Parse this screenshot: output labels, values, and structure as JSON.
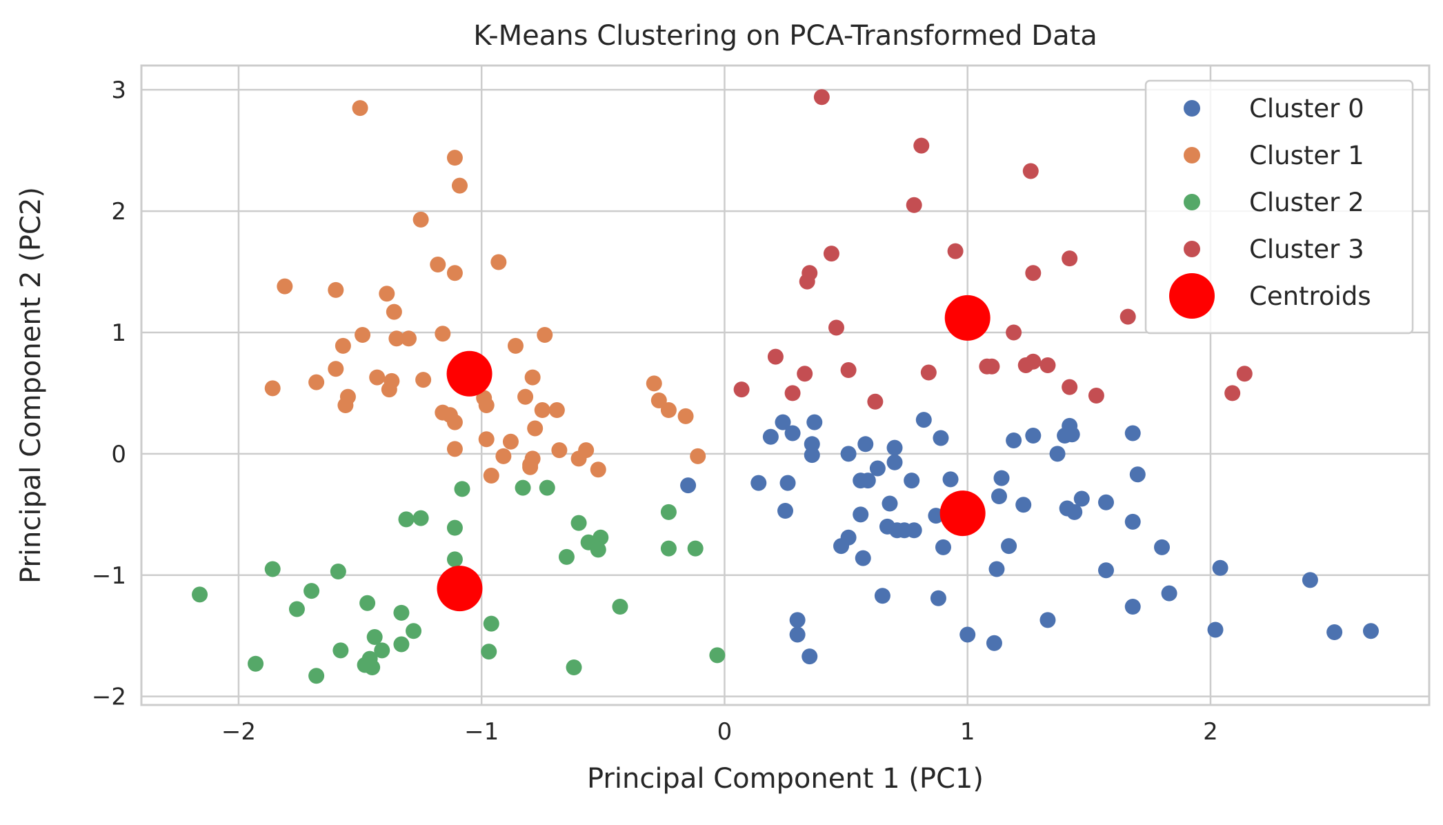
{
  "chart_data": {
    "type": "scatter",
    "title": "K-Means Clustering on PCA-Transformed Data",
    "xlabel": "Principal Component 1 (PC1)",
    "ylabel": "Principal Component 2 (PC2)",
    "xlim": [
      -2.4,
      2.9
    ],
    "ylim": [
      -2.07,
      3.2
    ],
    "xticks": [
      -2,
      -1,
      0,
      1,
      2
    ],
    "yticks": [
      -2,
      -1,
      0,
      1,
      2,
      3
    ],
    "xtick_labels": [
      "−2",
      "−1",
      "0",
      "1",
      "2"
    ],
    "ytick_labels": [
      "−2",
      "−1",
      "0",
      "1",
      "2",
      "3"
    ],
    "grid": true,
    "legend_position": "top-right",
    "series": [
      {
        "name": "Cluster 0",
        "color": "#4c72b0",
        "marker": "circle",
        "points": [
          [
            -0.15,
            -0.26
          ],
          [
            0.14,
            -0.24
          ],
          [
            0.19,
            0.14
          ],
          [
            0.24,
            0.26
          ],
          [
            0.28,
            0.17
          ],
          [
            0.26,
            -0.24
          ],
          [
            0.25,
            -0.47
          ],
          [
            0.37,
            0.26
          ],
          [
            0.36,
            0.08
          ],
          [
            0.36,
            -0.01
          ],
          [
            0.51,
            0.0
          ],
          [
            0.58,
            0.08
          ],
          [
            0.56,
            -0.22
          ],
          [
            0.59,
            -0.22
          ],
          [
            0.63,
            -0.12
          ],
          [
            0.56,
            -0.5
          ],
          [
            0.48,
            -0.76
          ],
          [
            0.51,
            -0.69
          ],
          [
            0.57,
            -0.86
          ],
          [
            0.68,
            -0.41
          ],
          [
            0.67,
            -0.6
          ],
          [
            0.71,
            -0.63
          ],
          [
            0.74,
            -0.63
          ],
          [
            0.78,
            -0.63
          ],
          [
            0.7,
            0.05
          ],
          [
            0.7,
            -0.07
          ],
          [
            0.77,
            -0.22
          ],
          [
            0.82,
            0.28
          ],
          [
            0.89,
            0.13
          ],
          [
            0.93,
            -0.21
          ],
          [
            0.87,
            -0.51
          ],
          [
            0.93,
            -0.48
          ],
          [
            0.9,
            -0.77
          ],
          [
            0.65,
            -1.17
          ],
          [
            0.88,
            -1.19
          ],
          [
            0.3,
            -1.37
          ],
          [
            0.3,
            -1.49
          ],
          [
            0.35,
            -1.67
          ],
          [
            1.0,
            -1.49
          ],
          [
            1.11,
            -1.56
          ],
          [
            1.12,
            -0.95
          ],
          [
            1.17,
            -0.76
          ],
          [
            1.14,
            -0.2
          ],
          [
            1.13,
            -0.35
          ],
          [
            1.19,
            0.11
          ],
          [
            1.23,
            -0.42
          ],
          [
            1.27,
            0.15
          ],
          [
            1.37,
            0.0
          ],
          [
            1.4,
            0.15
          ],
          [
            1.42,
            0.23
          ],
          [
            1.43,
            0.16
          ],
          [
            1.41,
            -0.45
          ],
          [
            1.44,
            -0.48
          ],
          [
            1.47,
            -0.37
          ],
          [
            1.57,
            -0.4
          ],
          [
            1.33,
            -1.37
          ],
          [
            1.57,
            -0.96
          ],
          [
            1.68,
            0.17
          ],
          [
            1.7,
            -0.17
          ],
          [
            1.68,
            -0.56
          ],
          [
            1.68,
            -1.26
          ],
          [
            1.8,
            -0.77
          ],
          [
            1.83,
            -1.15
          ],
          [
            2.02,
            -1.45
          ],
          [
            2.04,
            -0.94
          ],
          [
            2.41,
            -1.04
          ],
          [
            2.51,
            -1.47
          ],
          [
            2.66,
            -1.46
          ]
        ]
      },
      {
        "name": "Cluster 1",
        "color": "#dd8452",
        "marker": "circle",
        "points": [
          [
            -1.5,
            2.85
          ],
          [
            -1.11,
            2.44
          ],
          [
            -1.09,
            2.21
          ],
          [
            -1.25,
            1.93
          ],
          [
            -1.18,
            1.56
          ],
          [
            -1.11,
            1.49
          ],
          [
            -0.93,
            1.58
          ],
          [
            -1.81,
            1.38
          ],
          [
            -1.6,
            1.35
          ],
          [
            -1.39,
            1.32
          ],
          [
            -1.36,
            1.17
          ],
          [
            -1.49,
            0.98
          ],
          [
            -1.35,
            0.95
          ],
          [
            -1.3,
            0.95
          ],
          [
            -1.16,
            0.99
          ],
          [
            -1.57,
            0.89
          ],
          [
            -0.86,
            0.89
          ],
          [
            -0.74,
            0.98
          ],
          [
            -1.86,
            0.54
          ],
          [
            -1.68,
            0.59
          ],
          [
            -1.6,
            0.7
          ],
          [
            -1.43,
            0.63
          ],
          [
            -1.37,
            0.6
          ],
          [
            -1.38,
            0.53
          ],
          [
            -1.55,
            0.47
          ],
          [
            -1.56,
            0.4
          ],
          [
            -1.24,
            0.61
          ],
          [
            -0.79,
            0.63
          ],
          [
            -0.82,
            0.47
          ],
          [
            -1.16,
            0.34
          ],
          [
            -1.13,
            0.32
          ],
          [
            -1.11,
            0.26
          ],
          [
            -0.98,
            0.4
          ],
          [
            -0.99,
            0.46
          ],
          [
            -0.75,
            0.36
          ],
          [
            -0.69,
            0.36
          ],
          [
            -0.78,
            0.21
          ],
          [
            -0.98,
            0.12
          ],
          [
            -0.88,
            0.1
          ],
          [
            -1.11,
            0.04
          ],
          [
            -0.91,
            -0.02
          ],
          [
            -0.79,
            -0.04
          ],
          [
            -0.68,
            0.03
          ],
          [
            -0.8,
            -0.09
          ],
          [
            -0.8,
            -0.11
          ],
          [
            -0.96,
            -0.18
          ],
          [
            -0.57,
            0.03
          ],
          [
            -0.6,
            -0.04
          ],
          [
            -0.52,
            -0.13
          ],
          [
            -0.29,
            0.58
          ],
          [
            -0.27,
            0.44
          ],
          [
            -0.23,
            0.36
          ],
          [
            -0.16,
            0.31
          ],
          [
            -0.11,
            -0.02
          ]
        ]
      },
      {
        "name": "Cluster 2",
        "color": "#55a868",
        "marker": "circle",
        "points": [
          [
            -2.16,
            -1.16
          ],
          [
            -1.86,
            -0.95
          ],
          [
            -1.93,
            -1.73
          ],
          [
            -1.76,
            -1.28
          ],
          [
            -1.7,
            -1.13
          ],
          [
            -1.68,
            -1.83
          ],
          [
            -1.59,
            -0.97
          ],
          [
            -1.58,
            -1.62
          ],
          [
            -1.47,
            -1.23
          ],
          [
            -1.46,
            -1.69
          ],
          [
            -1.45,
            -1.76
          ],
          [
            -1.44,
            -1.51
          ],
          [
            -1.41,
            -1.62
          ],
          [
            -1.48,
            -1.74
          ],
          [
            -1.31,
            -0.54
          ],
          [
            -1.25,
            -0.53
          ],
          [
            -1.33,
            -1.31
          ],
          [
            -1.33,
            -1.57
          ],
          [
            -1.28,
            -1.46
          ],
          [
            -1.11,
            -0.61
          ],
          [
            -1.11,
            -0.87
          ],
          [
            -1.08,
            -0.29
          ],
          [
            -1.07,
            -1.16
          ],
          [
            -0.97,
            -1.63
          ],
          [
            -0.96,
            -1.4
          ],
          [
            -0.83,
            -0.28
          ],
          [
            -0.73,
            -0.28
          ],
          [
            -0.6,
            -0.57
          ],
          [
            -0.56,
            -0.73
          ],
          [
            -0.51,
            -0.69
          ],
          [
            -0.52,
            -0.79
          ],
          [
            -0.65,
            -0.85
          ],
          [
            -0.43,
            -1.26
          ],
          [
            -0.62,
            -1.76
          ],
          [
            -0.23,
            -0.48
          ],
          [
            -0.23,
            -0.78
          ],
          [
            -0.12,
            -0.78
          ],
          [
            -0.03,
            -1.66
          ]
        ]
      },
      {
        "name": "Cluster 3",
        "color": "#c44e52",
        "marker": "circle",
        "points": [
          [
            0.4,
            2.94
          ],
          [
            0.81,
            2.54
          ],
          [
            1.26,
            2.33
          ],
          [
            0.78,
            2.05
          ],
          [
            0.95,
            1.67
          ],
          [
            1.42,
            1.61
          ],
          [
            0.44,
            1.65
          ],
          [
            0.35,
            1.49
          ],
          [
            0.34,
            1.42
          ],
          [
            1.27,
            1.49
          ],
          [
            0.46,
            1.04
          ],
          [
            0.95,
            1.07
          ],
          [
            1.66,
            1.13
          ],
          [
            1.19,
            1.0
          ],
          [
            0.21,
            0.8
          ],
          [
            0.07,
            0.53
          ],
          [
            0.28,
            0.5
          ],
          [
            0.33,
            0.66
          ],
          [
            0.51,
            0.69
          ],
          [
            0.84,
            0.67
          ],
          [
            1.08,
            0.72
          ],
          [
            1.1,
            0.72
          ],
          [
            1.24,
            0.73
          ],
          [
            1.27,
            0.76
          ],
          [
            1.33,
            0.73
          ],
          [
            0.62,
            0.43
          ],
          [
            1.42,
            0.55
          ],
          [
            1.53,
            0.48
          ],
          [
            2.09,
            0.5
          ],
          [
            2.14,
            0.66
          ]
        ]
      },
      {
        "name": "Centroids",
        "color": "#ff0000",
        "marker": "circle-large",
        "points": [
          [
            -1.05,
            0.66
          ],
          [
            1.0,
            1.12
          ],
          [
            0.98,
            -0.49
          ],
          [
            -1.09,
            -1.11
          ]
        ]
      }
    ]
  }
}
